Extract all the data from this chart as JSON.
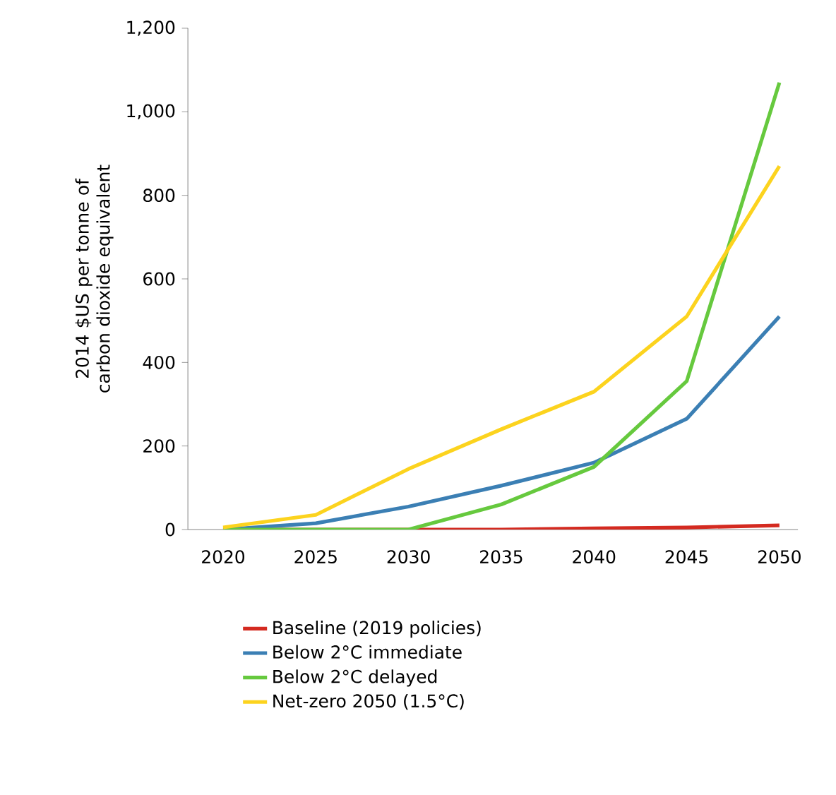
{
  "chart_data": {
    "type": "line",
    "ylabel": "2014 $US per tonne of carbon dioxide equivalent",
    "categories": [
      "2020",
      "2025",
      "2030",
      "2035",
      "2040",
      "2045",
      "2050"
    ],
    "series": [
      {
        "name": "Baseline (2019 policies)",
        "color": "#d42a20",
        "values": [
          0,
          0,
          0,
          0,
          3,
          5,
          10
        ]
      },
      {
        "name": "Below 2°C immediate",
        "color": "#3b7fb4",
        "values": [
          0,
          15,
          55,
          105,
          160,
          265,
          510
        ]
      },
      {
        "name": "Below 2°C delayed",
        "color": "#66c93e",
        "values": [
          0,
          0,
          0,
          60,
          150,
          355,
          1070
        ]
      },
      {
        "name": "Net-zero 2050 (1.5°C)",
        "color": "#fcd31e",
        "values": [
          5,
          35,
          145,
          240,
          330,
          510,
          870
        ]
      }
    ],
    "ylim": [
      0,
      1200
    ],
    "yticks": [
      0,
      200,
      400,
      600,
      800,
      {
        "value": 1000,
        "label": "1,000"
      },
      {
        "value": 1200,
        "label": "1,200"
      }
    ],
    "grid": false,
    "legend": "bottom",
    "marker": "none",
    "line_style": "solid"
  }
}
